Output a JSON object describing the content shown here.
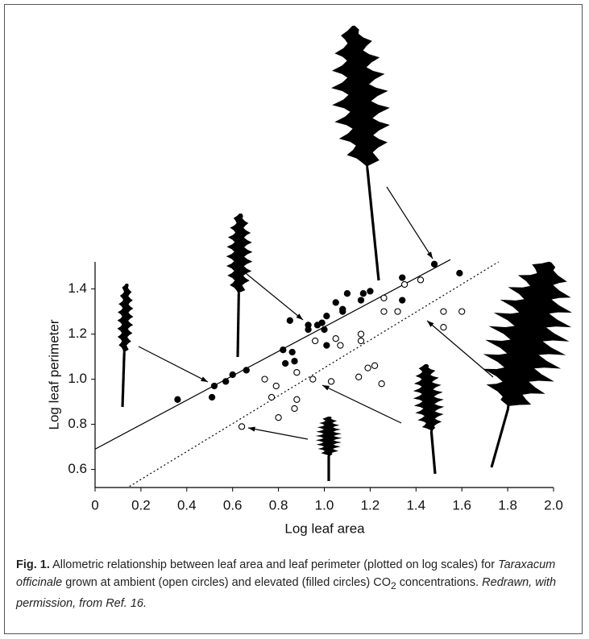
{
  "chart_data": {
    "type": "scatter",
    "xlabel": "Log leaf area",
    "ylabel": "Log leaf perimeter",
    "xlim": [
      0,
      2
    ],
    "ylim": [
      0.52,
      1.52
    ],
    "xticks": [
      0,
      0.2,
      0.4,
      0.6,
      0.8,
      {
        "value": 1,
        "label": "1.0"
      },
      1.2,
      1.4,
      1.6,
      1.8,
      {
        "value": 2,
        "label": "2.0"
      }
    ],
    "yticks": [
      0.6,
      0.8,
      {
        "value": 1,
        "label": "1.0"
      },
      1.2,
      1.4
    ],
    "series": [
      {
        "marker": "filled",
        "color": "#000000",
        "x": [
          0.36,
          0.51,
          0.52,
          0.57,
          0.6,
          0.66,
          0.82,
          0.85,
          0.86,
          0.83,
          0.87,
          0.93,
          0.93,
          0.97,
          0.99,
          1.0,
          1.01,
          1.01,
          1.05,
          1.08,
          1.08,
          1.1,
          1.16,
          1.17,
          1.2,
          1.34,
          1.34,
          1.48,
          1.59
        ],
        "y": [
          0.91,
          0.92,
          0.97,
          0.99,
          1.02,
          1.04,
          1.13,
          1.26,
          1.12,
          1.07,
          1.08,
          1.24,
          1.22,
          1.24,
          1.25,
          1.22,
          1.15,
          1.28,
          1.34,
          1.31,
          1.3,
          1.38,
          1.35,
          1.38,
          1.39,
          1.35,
          1.45,
          1.51,
          1.47
        ]
      },
      {
        "marker": "open",
        "color": "#000000",
        "x": [
          0.64,
          0.74,
          0.77,
          0.79,
          0.8,
          0.87,
          0.88,
          0.88,
          0.95,
          0.96,
          1.03,
          1.05,
          1.07,
          1.15,
          1.16,
          1.16,
          1.19,
          1.22,
          1.25,
          1.26,
          1.26,
          1.32,
          1.35,
          1.42,
          1.52,
          1.52,
          1.6
        ],
        "y": [
          0.79,
          1.0,
          0.92,
          0.97,
          0.83,
          0.87,
          0.91,
          1.03,
          1.0,
          1.17,
          0.99,
          1.18,
          1.15,
          1.01,
          1.2,
          1.17,
          1.05,
          1.06,
          0.98,
          1.36,
          1.3,
          1.3,
          1.42,
          1.44,
          1.3,
          1.23,
          1.3
        ]
      }
    ],
    "lines": [
      {
        "style": "solid",
        "x": [
          0,
          1.55
        ],
        "y": [
          0.69,
          1.53
        ]
      },
      {
        "style": "dotted",
        "x": [
          0.15,
          1.76
        ],
        "y": [
          0.525,
          1.52
        ]
      }
    ],
    "caption": [
      "Fig. 1.",
      "Allometric relationship between leaf area and leaf perimeter (plotted on log scales) for",
      "Taraxacum officinale",
      "grown at ambient (open circles) and elevated (filled circles) CO",
      "2",
      "concentrations.",
      "Redrawn, with permission, from Ref. 16."
    ]
  }
}
